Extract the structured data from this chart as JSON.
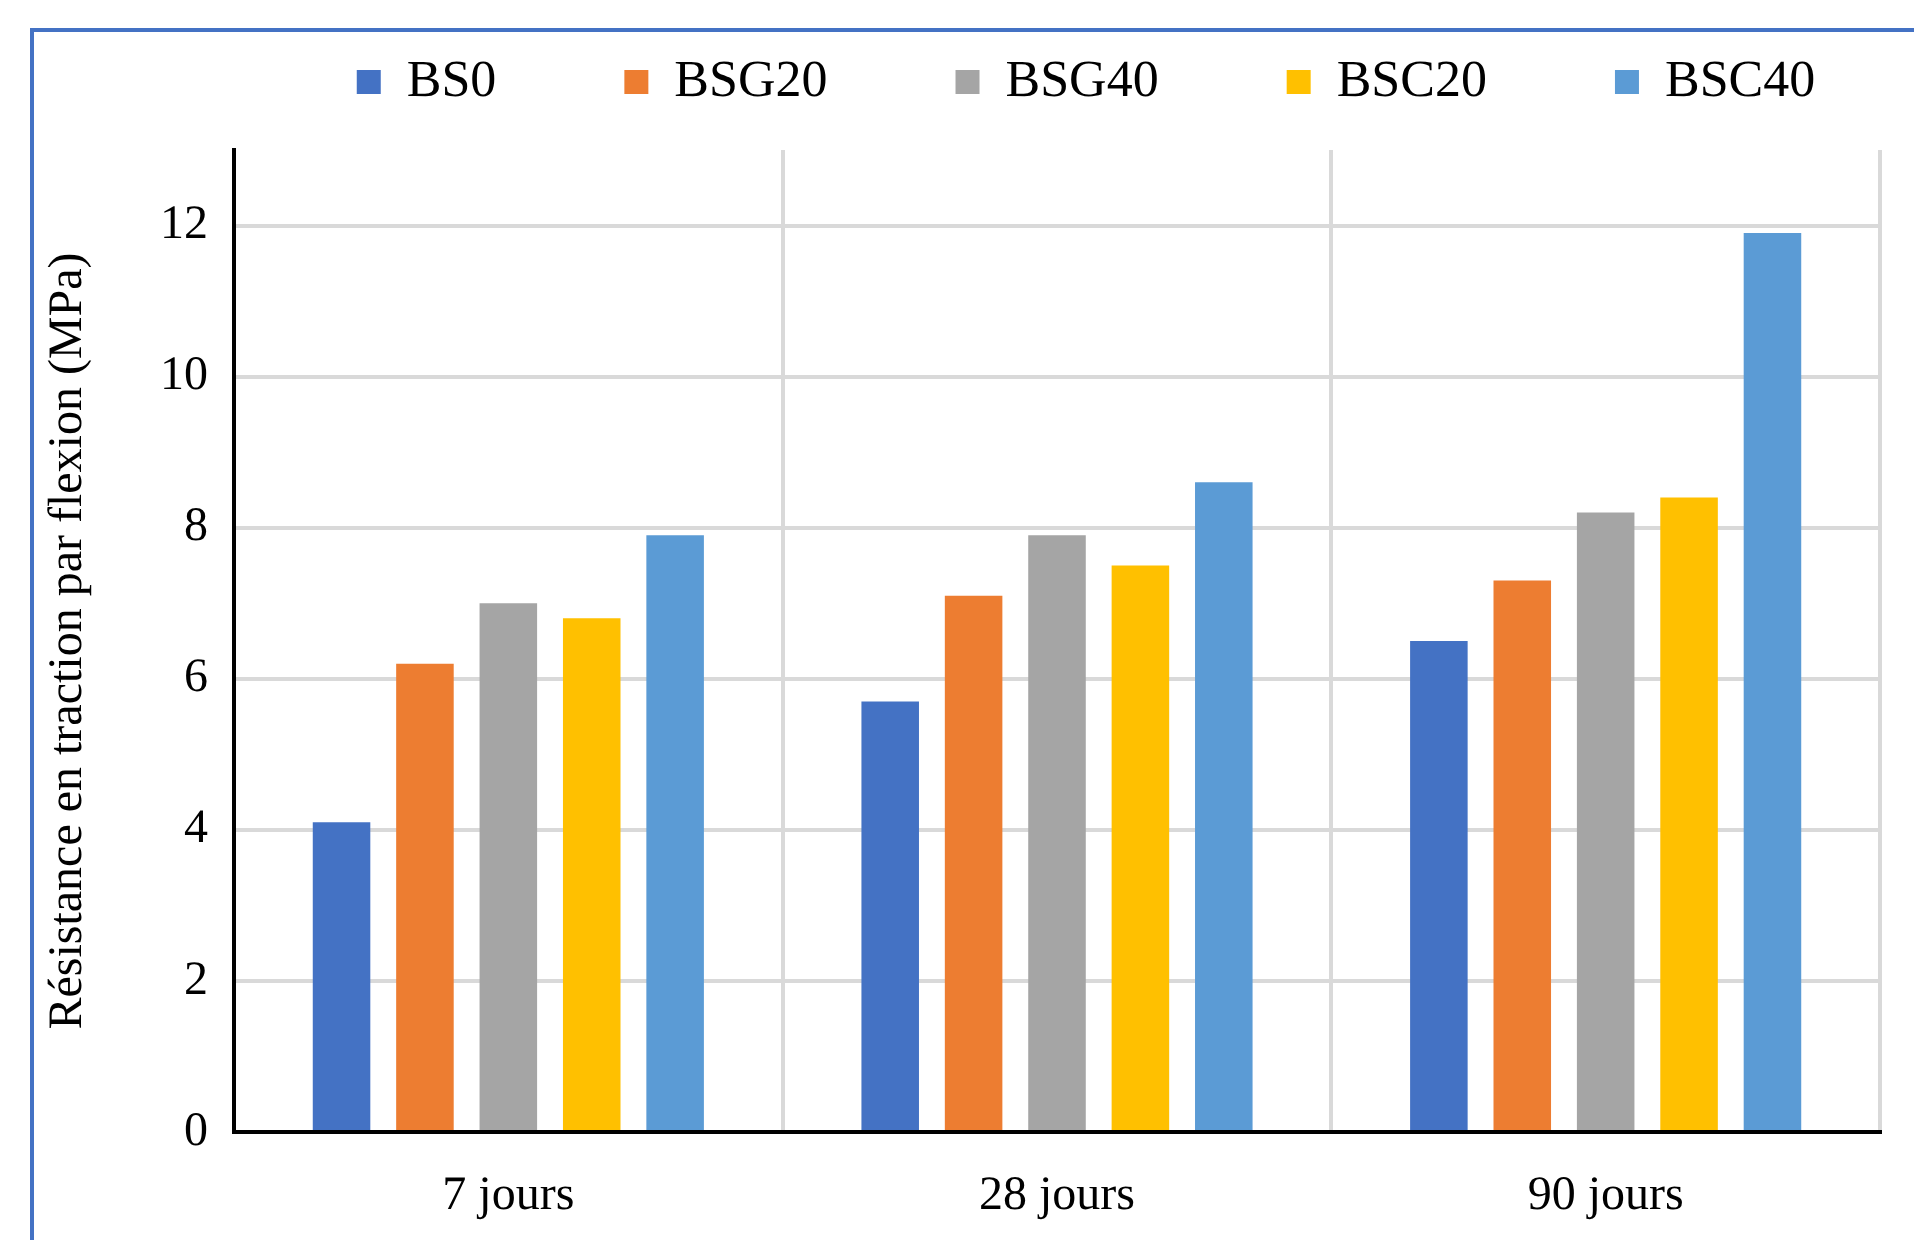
{
  "chart_data": {
    "type": "bar",
    "ylabel": "Résistance en traction par flexion (MPa)",
    "categories": [
      "7 jours",
      "28 jours",
      "90 jours"
    ],
    "series": [
      {
        "name": "BS0",
        "color": "#4472c4",
        "values": [
          4.1,
          5.7,
          6.5
        ]
      },
      {
        "name": "BSG20",
        "color": "#ed7d31",
        "values": [
          6.2,
          7.1,
          7.3
        ]
      },
      {
        "name": "BSG40",
        "color": "#a5a5a5",
        "values": [
          7.0,
          7.9,
          8.2
        ]
      },
      {
        "name": "BSC20",
        "color": "#ffc000",
        "values": [
          6.8,
          7.5,
          8.4
        ]
      },
      {
        "name": "BSC40",
        "color": "#5b9bd5",
        "values": [
          7.9,
          8.6,
          11.9
        ]
      }
    ],
    "ylim": [
      0,
      13
    ],
    "yticks": [
      0,
      2,
      4,
      6,
      8,
      10,
      12
    ],
    "grid": true,
    "legend": "top"
  }
}
